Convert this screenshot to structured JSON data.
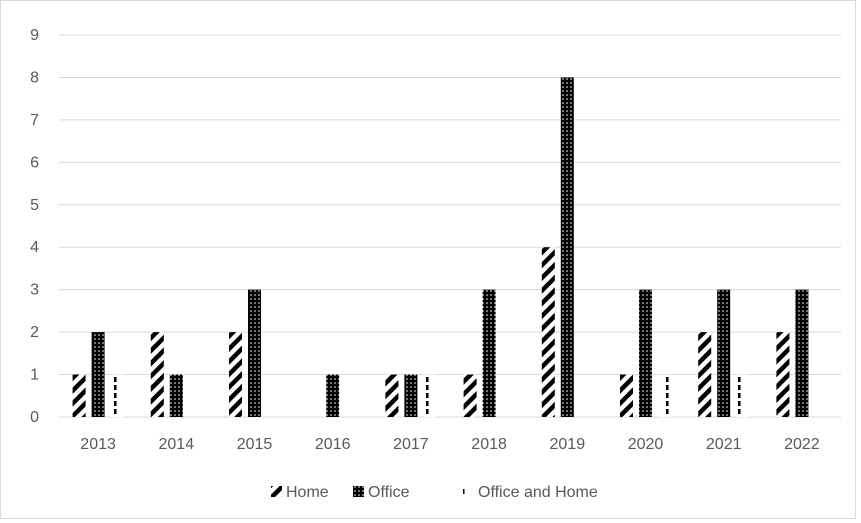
{
  "chart_data": {
    "type": "bar",
    "categories": [
      "2013",
      "2014",
      "2015",
      "2016",
      "2017",
      "2018",
      "2019",
      "2020",
      "2021",
      "2022"
    ],
    "series": [
      {
        "name": "Home",
        "values": [
          1,
          2,
          2,
          0,
          1,
          1,
          4,
          1,
          2,
          2
        ],
        "pattern": "diagonal-stripes"
      },
      {
        "name": "Office",
        "values": [
          2,
          1,
          3,
          1,
          1,
          3,
          8,
          3,
          3,
          3
        ],
        "pattern": "dotted-black"
      },
      {
        "name": "Office and Home",
        "values": [
          1,
          0,
          0,
          0,
          1,
          0,
          0,
          1,
          1,
          0
        ],
        "pattern": "dashed-vertical"
      }
    ],
    "ylim": [
      0,
      9
    ],
    "yticks": [
      0,
      1,
      2,
      3,
      4,
      5,
      6,
      7,
      8,
      9
    ],
    "grid": true,
    "legend_position": "bottom",
    "colors": {
      "axis": "#d9d9d9",
      "grid": "#d9d9d9",
      "text": "#595959",
      "bar": "#000000"
    }
  }
}
